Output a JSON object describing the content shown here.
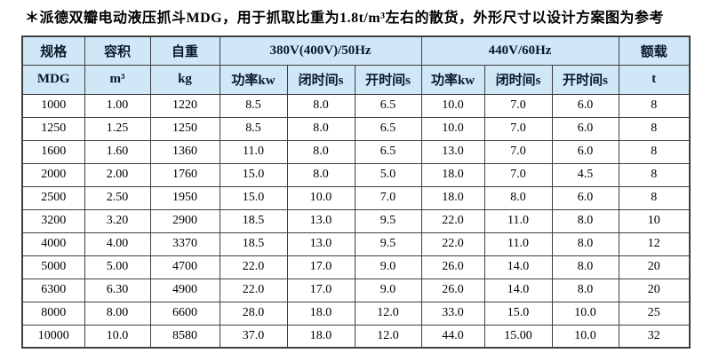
{
  "title": "＊派德双瓣电动液压抓斗MDG，用于抓取比重为1.8t/m³左右的散货，外形尺寸以设计方案图为参考",
  "colors": {
    "header_bg": "#cfe7f7",
    "border": "#3f3f3f",
    "title_text": "#000000"
  },
  "chart_data": {
    "type": "table",
    "title": "＊派德双瓣电动液压抓斗MDG，用于抓取比重为1.8t/m³左右的散货，外形尺寸以设计方案图为参考",
    "columns": [
      "规格 MDG",
      "容积 m³",
      "自重 kg",
      "380V(400V)/50Hz 功率kw",
      "380V(400V)/50Hz 闭时间s",
      "380V(400V)/50Hz 开时间s",
      "440V/60Hz 功率kw",
      "440V/60Hz 闭时间s",
      "440V/60Hz 开时间s",
      "额载 t"
    ],
    "rows": [
      [
        "1000",
        "1.00",
        "1220",
        "8.5",
        "8.0",
        "6.5",
        "10.0",
        "7.0",
        "6.0",
        "8"
      ],
      [
        "1250",
        "1.25",
        "1250",
        "8.5",
        "8.0",
        "6.5",
        "10.0",
        "7.0",
        "6.0",
        "8"
      ],
      [
        "1600",
        "1.60",
        "1360",
        "11.0",
        "8.0",
        "6.5",
        "13.0",
        "7.0",
        "6.0",
        "8"
      ],
      [
        "2000",
        "2.00",
        "1760",
        "15.0",
        "8.0",
        "5.0",
        "18.0",
        "7.0",
        "4.5",
        "8"
      ],
      [
        "2500",
        "2.50",
        "1950",
        "15.0",
        "10.0",
        "7.0",
        "18.0",
        "8.0",
        "6.0",
        "8"
      ],
      [
        "3200",
        "3.20",
        "2900",
        "18.5",
        "13.0",
        "9.5",
        "22.0",
        "11.0",
        "8.0",
        "10"
      ],
      [
        "4000",
        "4.00",
        "3370",
        "18.5",
        "13.0",
        "9.5",
        "22.0",
        "11.0",
        "8.0",
        "12"
      ],
      [
        "5000",
        "5.00",
        "4700",
        "22.0",
        "17.0",
        "9.0",
        "26.0",
        "14.0",
        "8.0",
        "20"
      ],
      [
        "6300",
        "6.30",
        "4900",
        "22.0",
        "17.0",
        "9.0",
        "26.0",
        "14.0",
        "8.0",
        "20"
      ],
      [
        "8000",
        "8.00",
        "6600",
        "28.0",
        "18.0",
        "12.0",
        "33.0",
        "15.0",
        "10.0",
        "25"
      ],
      [
        "10000",
        "10.0",
        "8580",
        "37.0",
        "18.0",
        "12.0",
        "44.0",
        "15.00",
        "10.0",
        "32"
      ]
    ]
  },
  "table": {
    "header": {
      "spec": "规格",
      "volume": "容积",
      "weight": "自重",
      "group_380": "380V(400V)/50Hz",
      "group_440": "440V/60Hz",
      "load": "额载",
      "sub_spec": "MDG",
      "sub_volume": "m³",
      "sub_weight": "kg",
      "sub_power": "功率kw",
      "sub_close": "闭时间s",
      "sub_open": "开时间s",
      "sub_load": "t"
    }
  }
}
